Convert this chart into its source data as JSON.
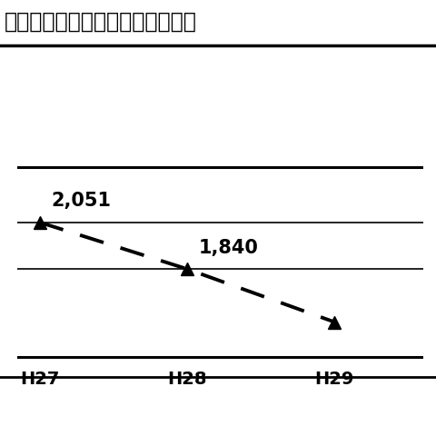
{
  "title": "過去５年の不正アクセス行為の認",
  "x_labels": [
    "H27",
    "H28",
    "H29"
  ],
  "x_values": [
    0,
    1,
    2
  ],
  "y_values": [
    2051,
    1840,
    1600
  ],
  "data_labels": [
    "2,051",
    "1,840",
    null
  ],
  "line_color": "#000000",
  "marker_color": "#000000",
  "bg_color": "#ffffff",
  "title_fontsize": 17,
  "label_fontsize": 15,
  "tick_fontsize": 14,
  "ylim": [
    1400,
    2800
  ],
  "hline_y": [
    2050,
    1840
  ],
  "border_color": "#000000"
}
